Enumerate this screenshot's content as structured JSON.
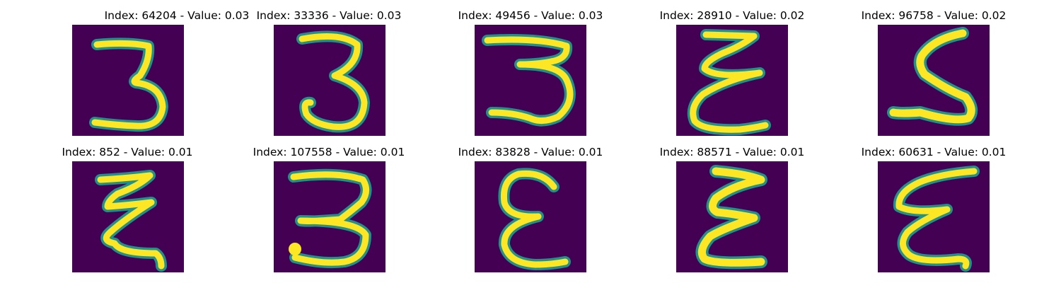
{
  "figure": {
    "background_color": "#440154",
    "stroke_color": "#fde725",
    "edge_color": "#21918c",
    "panels": [
      {
        "title": "Index: 64204 - Value: 0.03",
        "glyph": "3",
        "variant": "a"
      },
      {
        "title": "Index: 33336 - Value: 0.03",
        "glyph": "3",
        "variant": "b"
      },
      {
        "title": "Index: 49456 - Value: 0.03",
        "glyph": "3",
        "variant": "c"
      },
      {
        "title": "Index: 28910 - Value: 0.02",
        "glyph": "epsilon",
        "variant": "a"
      },
      {
        "title": "Index: 96758 - Value: 0.02",
        "glyph": "S",
        "variant": "a"
      },
      {
        "title": "Index: 852 - Value: 0.01",
        "glyph": "Z",
        "variant": "a"
      },
      {
        "title": "Index: 107558 - Value: 0.01",
        "glyph": "3",
        "variant": "d"
      },
      {
        "title": "Index: 83828 - Value: 0.01",
        "glyph": "epsilon",
        "variant": "b"
      },
      {
        "title": "Index: 88571 - Value: 0.01",
        "glyph": "epsilon",
        "variant": "c"
      },
      {
        "title": "Index: 60631 - Value: 0.01",
        "glyph": "epsilon",
        "variant": "d"
      }
    ]
  }
}
